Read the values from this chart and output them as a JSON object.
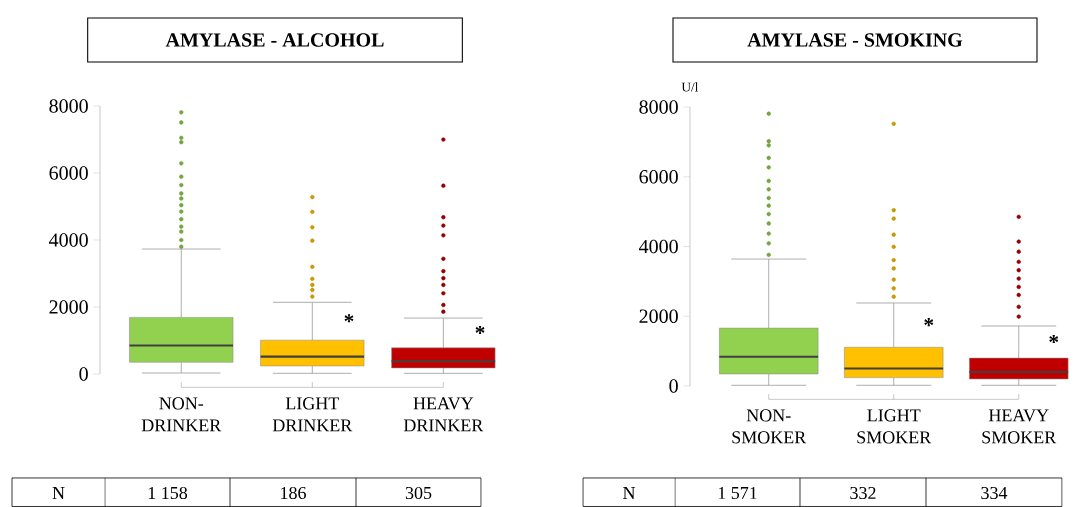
{
  "chart_data": [
    {
      "type": "box",
      "title": "AMYLASE - ALCOHOL",
      "categories": [
        "NON-DRINKER",
        "LIGHT DRINKER",
        "HEAVY DRINKER"
      ],
      "colors": [
        "#92d050",
        "#ffc000",
        "#c00000"
      ],
      "boxes": [
        {
          "low": 30,
          "q1": 350,
          "median": 850,
          "q3": 1690,
          "high": 3730,
          "outliers": [
            7810,
            7510,
            7050,
            6920,
            6290,
            5890,
            5640,
            5390,
            5240,
            5040,
            4850,
            4620,
            4400,
            4250,
            4000,
            3800
          ]
        },
        {
          "low": 20,
          "q1": 240,
          "median": 520,
          "q3": 1010,
          "high": 2140,
          "outliers": [
            5280,
            4840,
            4380,
            3980,
            3200,
            2840,
            2660,
            2510,
            2310
          ]
        },
        {
          "low": 20,
          "q1": 180,
          "median": 380,
          "q3": 780,
          "high": 1670,
          "outliers": [
            7000,
            5620,
            4680,
            4430,
            4140,
            3440,
            3070,
            2860,
            2660,
            2410,
            2060,
            1860
          ]
        }
      ],
      "ylim": [
        0,
        8000
      ],
      "yticks": [
        0,
        2000,
        4000,
        6000,
        8000
      ],
      "annotations": [
        "*",
        "*",
        "N",
        "1 158",
        "186",
        "305"
      ]
    },
    {
      "type": "box",
      "title": "AMYLASE - SMOKING",
      "ylabel": "U/l",
      "categories": [
        "NON-SMOKER",
        "LIGHT SMOKER",
        "HEAVY SMOKER"
      ],
      "colors": [
        "#92d050",
        "#ffc000",
        "#c00000"
      ],
      "boxes": [
        {
          "low": 20,
          "q1": 345,
          "median": 840,
          "q3": 1660,
          "high": 3640,
          "outliers": [
            7810,
            7020,
            6900,
            6540,
            6270,
            5880,
            5640,
            5390,
            5170,
            4930,
            4660,
            4370,
            4090,
            3760
          ]
        },
        {
          "low": 20,
          "q1": 240,
          "median": 500,
          "q3": 1110,
          "high": 2380,
          "outliers": [
            7520,
            5040,
            4800,
            4340,
            3990,
            3610,
            3370,
            3050,
            2800,
            2560
          ]
        },
        {
          "low": 20,
          "q1": 200,
          "median": 400,
          "q3": 800,
          "high": 1720,
          "outliers": [
            4850,
            4140,
            3850,
            3560,
            3320,
            3080,
            2840,
            2610,
            2270,
            1990
          ]
        }
      ],
      "ylim": [
        0,
        8000
      ],
      "yticks": [
        0,
        2000,
        4000,
        6000,
        8000
      ],
      "annotations": [
        "*",
        "*",
        "N",
        "1 571",
        "332",
        "334"
      ]
    }
  ]
}
